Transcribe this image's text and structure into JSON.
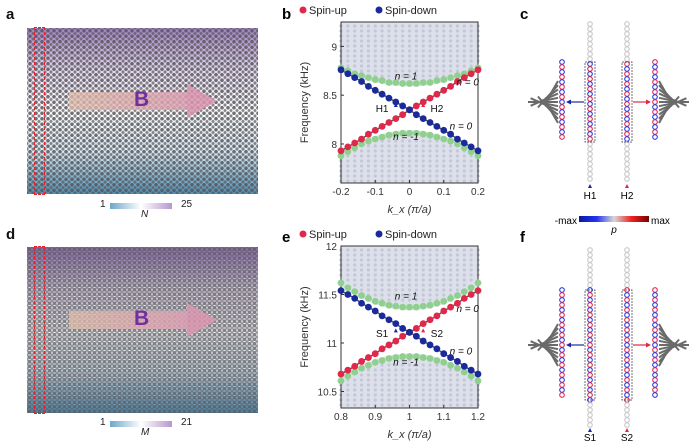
{
  "panels": {
    "a": "a",
    "b": "b",
    "c": "c",
    "d": "d",
    "e": "e",
    "f": "f"
  },
  "panel_a": {
    "field_label": "B",
    "colorbar_min": "1",
    "colorbar_max": "25",
    "colorbar_label": "N"
  },
  "panel_d": {
    "field_label": "B",
    "colorbar_min": "1",
    "colorbar_max": "21",
    "colorbar_label": "M"
  },
  "panel_c": {
    "left_label": "H1",
    "right_label": "H2",
    "colorbar_min": "-max",
    "colorbar_max": "max",
    "colorbar_label": "p"
  },
  "panel_f": {
    "left_label": "S1",
    "right_label": "S2"
  },
  "colors": {
    "spin_up": "#e0284a",
    "spin_down": "#1a2a9c",
    "bulk_edge": "#8fd08f",
    "bulk": "#c3c8d8",
    "lattice_top": "#a583c4",
    "lattice_bottom": "#4f8fb3"
  },
  "chart_data": [
    {
      "type": "scatter",
      "panel": "b",
      "xlabel": "k_x (π/a)",
      "ylabel": "Frequency (kHz)",
      "xlim": [
        -0.2,
        0.2
      ],
      "ylim": [
        7.6,
        9.25
      ],
      "xticks": [
        "-0.2",
        "-0.1",
        "0",
        "0.1",
        "0.2"
      ],
      "xtick_values": [
        -0.2,
        -0.1,
        0,
        0.1,
        0.2
      ],
      "yticks": [
        "8",
        "8.5",
        "9"
      ],
      "ytick_values": [
        8,
        8.5,
        9
      ],
      "legend": [
        "Spin-up",
        "Spin-down"
      ],
      "legend_position": "top",
      "x": [
        -0.2,
        -0.18,
        -0.16,
        -0.14,
        -0.12,
        -0.1,
        -0.08,
        -0.06,
        -0.04,
        -0.02,
        0,
        0.02,
        0.04,
        0.06,
        0.08,
        0.1,
        0.12,
        0.14,
        0.16,
        0.18,
        0.2
      ],
      "series": [
        {
          "name": "Spin-up",
          "values": [
            7.93,
            7.97,
            8.01,
            8.05,
            8.1,
            8.14,
            8.18,
            8.22,
            8.26,
            8.3,
            8.35,
            8.39,
            8.43,
            8.47,
            8.51,
            8.55,
            8.59,
            8.64,
            8.68,
            8.72,
            8.76
          ]
        },
        {
          "name": "Spin-down",
          "values": [
            8.76,
            8.72,
            8.68,
            8.64,
            8.59,
            8.55,
            8.51,
            8.47,
            8.43,
            8.39,
            8.35,
            8.3,
            8.26,
            8.22,
            8.18,
            8.14,
            8.1,
            8.05,
            8.01,
            7.97,
            7.93
          ]
        },
        {
          "values": [
            8.78,
            8.75,
            8.72,
            8.7,
            8.68,
            8.66,
            8.65,
            8.63,
            8.63,
            8.62,
            8.62,
            8.62,
            8.63,
            8.63,
            8.65,
            8.66,
            8.68,
            8.7,
            8.72,
            8.75,
            8.78
          ]
        },
        {
          "values": [
            7.88,
            7.92,
            7.96,
            8.0,
            8.03,
            8.05,
            8.07,
            8.09,
            8.1,
            8.11,
            8.11,
            8.11,
            8.1,
            8.09,
            8.07,
            8.05,
            8.03,
            8.0,
            7.96,
            7.92,
            7.88
          ]
        }
      ],
      "annotations": [
        {
          "text": "n = 1",
          "x": -0.01,
          "y": 8.66
        },
        {
          "text": "n = 0",
          "x": 0.17,
          "y": 8.6
        },
        {
          "text": "n = 0",
          "x": 0.15,
          "y": 8.15
        },
        {
          "text": "n = -1",
          "x": -0.01,
          "y": 8.04
        },
        {
          "text": "H1",
          "x": -0.08,
          "y": 8.33
        },
        {
          "text": "H2",
          "x": 0.08,
          "y": 8.33
        }
      ],
      "markers": [
        {
          "label": "H1",
          "x": -0.04,
          "y": 8.4,
          "color": "#1a2a9c"
        },
        {
          "label": "H2",
          "x": 0.04,
          "y": 8.4,
          "color": "#e0284a"
        }
      ]
    },
    {
      "type": "scatter",
      "panel": "e",
      "xlabel": "k_x (π/a)",
      "ylabel": "Frequency (kHz)",
      "xlim": [
        0.8,
        1.2
      ],
      "ylim": [
        10.33,
        12
      ],
      "xticks": [
        "0.8",
        "0.9",
        "1",
        "1.1",
        "1.2"
      ],
      "xtick_values": [
        0.8,
        0.9,
        1,
        1.1,
        1.2
      ],
      "yticks": [
        "10.5",
        "11",
        "11.5",
        "12"
      ],
      "ytick_values": [
        10.5,
        11,
        11.5,
        12
      ],
      "legend": [
        "Spin-up",
        "Spin-down"
      ],
      "legend_position": "top",
      "x": [
        0.8,
        0.82,
        0.84,
        0.86,
        0.88,
        0.9,
        0.92,
        0.94,
        0.96,
        0.98,
        1,
        1.02,
        1.04,
        1.06,
        1.08,
        1.1,
        1.12,
        1.14,
        1.16,
        1.18,
        1.2
      ],
      "series": [
        {
          "name": "Spin-up",
          "values": [
            10.68,
            10.72,
            10.76,
            10.81,
            10.85,
            10.89,
            10.94,
            10.98,
            11.02,
            11.07,
            11.11,
            11.15,
            11.2,
            11.24,
            11.28,
            11.33,
            11.37,
            11.41,
            11.46,
            11.5,
            11.54
          ]
        },
        {
          "name": "Spin-down",
          "values": [
            11.54,
            11.5,
            11.46,
            11.41,
            11.37,
            11.33,
            11.28,
            11.24,
            11.2,
            11.15,
            11.11,
            11.07,
            11.02,
            10.98,
            10.94,
            10.89,
            10.85,
            10.81,
            10.76,
            10.72,
            10.68
          ]
        },
        {
          "values": [
            11.62,
            11.57,
            11.53,
            11.49,
            11.46,
            11.43,
            11.41,
            11.39,
            11.38,
            11.37,
            11.37,
            11.37,
            11.38,
            11.39,
            11.41,
            11.43,
            11.46,
            11.49,
            11.53,
            11.57,
            11.62
          ]
        },
        {
          "values": [
            10.61,
            10.66,
            10.7,
            10.74,
            10.77,
            10.8,
            10.82,
            10.84,
            10.85,
            10.86,
            10.86,
            10.86,
            10.85,
            10.84,
            10.82,
            10.8,
            10.77,
            10.74,
            10.7,
            10.66,
            10.61
          ]
        }
      ],
      "annotations": [
        {
          "text": "n = 1",
          "x": 0.99,
          "y": 11.45
        },
        {
          "text": "n = 0",
          "x": 1.17,
          "y": 11.32
        },
        {
          "text": "n = 0",
          "x": 1.15,
          "y": 10.88
        },
        {
          "text": "n = -1",
          "x": 0.99,
          "y": 10.77
        },
        {
          "text": "S1",
          "x": 0.92,
          "y": 11.06
        },
        {
          "text": "S2",
          "x": 1.08,
          "y": 11.06
        }
      ],
      "markers": [
        {
          "label": "S1",
          "x": 0.96,
          "y": 11.13,
          "color": "#1a2a9c"
        },
        {
          "label": "S2",
          "x": 1.04,
          "y": 11.13,
          "color": "#e0284a"
        }
      ]
    }
  ]
}
